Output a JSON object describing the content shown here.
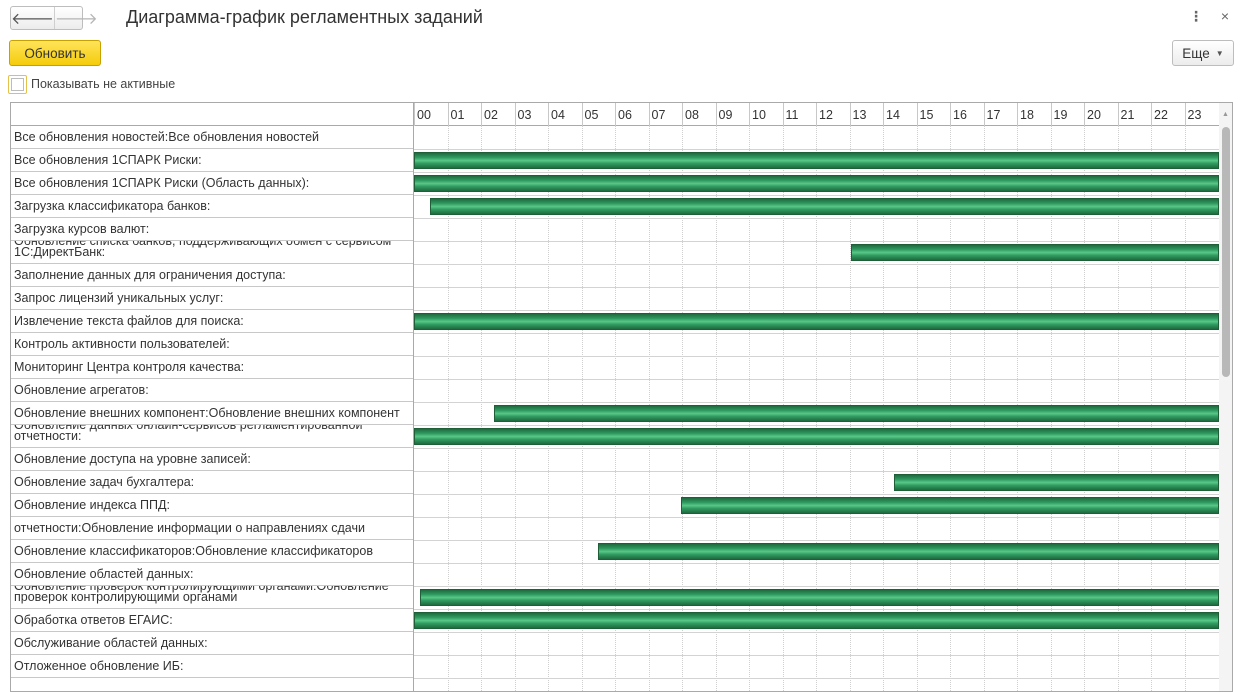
{
  "window": {
    "title": "Диаграмма-график регламентных заданий",
    "more_icon": "⋮",
    "close_icon": "×"
  },
  "nav": {
    "back_icon": "🡐",
    "forward_icon": "🡒"
  },
  "toolbar": {
    "refresh_label": "Обновить",
    "more_label": "Еще",
    "more_caret": "▼"
  },
  "options": {
    "show_inactive_label": "Показывать не активные",
    "show_inactive_checked": false
  },
  "chart": {
    "hours": [
      "00",
      "01",
      "02",
      "03",
      "04",
      "05",
      "06",
      "07",
      "08",
      "09",
      "10",
      "11",
      "12",
      "13",
      "14",
      "15",
      "16",
      "17",
      "18",
      "19",
      "20",
      "21",
      "22",
      "23"
    ],
    "bar_color": "#2f9a5f",
    "rows": [
      {
        "label": "Все обновления новостей:Все обновления новостей",
        "wrap": false,
        "start_hour": null
      },
      {
        "label": "Все обновления 1СПАРК Риски:",
        "wrap": false,
        "start_hour": 0
      },
      {
        "label": "Все обновления 1СПАРК Риски (Область данных):",
        "wrap": false,
        "start_hour": 0
      },
      {
        "label": "Загрузка классификатора банков:",
        "wrap": false,
        "start_hour": 0.47
      },
      {
        "label": "Загрузка курсов валют:",
        "wrap": false,
        "start_hour": null
      },
      {
        "label": "Обновление списка банков, поддерживающих обмен с сервисом 1С:ДиректБанк:",
        "wrap": true,
        "start_hour": 13.05
      },
      {
        "label": "Заполнение данных для ограничения доступа:",
        "wrap": false,
        "start_hour": null
      },
      {
        "label": "Запрос лицензий уникальных услуг:",
        "wrap": false,
        "start_hour": null
      },
      {
        "label": "Извлечение текста файлов для поиска:",
        "wrap": false,
        "start_hour": 0
      },
      {
        "label": "Контроль активности пользователей:",
        "wrap": false,
        "start_hour": null
      },
      {
        "label": "Мониторинг Центра контроля качества:",
        "wrap": false,
        "start_hour": null
      },
      {
        "label": "Обновление агрегатов:",
        "wrap": false,
        "start_hour": null
      },
      {
        "label": "Обновление внешних компонент:Обновление внешних компонент",
        "wrap": false,
        "start_hour": 2.4
      },
      {
        "label": "Обновление данных онлайн-сервисов регламентированной отчетности:",
        "wrap": true,
        "start_hour": 0
      },
      {
        "label": "Обновление доступа на уровне записей:",
        "wrap": false,
        "start_hour": null
      },
      {
        "label": "Обновление задач бухгалтера:",
        "wrap": false,
        "start_hour": 14.33
      },
      {
        "label": "Обновление индекса ППД:",
        "wrap": false,
        "start_hour": 7.98
      },
      {
        "label": "отчетности:Обновление информации о направлениях сдачи",
        "wrap": false,
        "start_hour": null
      },
      {
        "label": "Обновление классификаторов:Обновление классификаторов",
        "wrap": false,
        "start_hour": 5.5
      },
      {
        "label": "Обновление областей данных:",
        "wrap": false,
        "start_hour": null
      },
      {
        "label": "Обновление проверок контролирующими органами:Обновление проверок контролирующими органами",
        "wrap": true,
        "start_hour": 0.17
      },
      {
        "label": "Обработка ответов ЕГАИС:",
        "wrap": false,
        "start_hour": 0
      },
      {
        "label": "Обслуживание областей данных:",
        "wrap": false,
        "start_hour": null
      },
      {
        "label": "Отложенное обновление ИБ:",
        "wrap": false,
        "start_hour": null
      }
    ]
  }
}
